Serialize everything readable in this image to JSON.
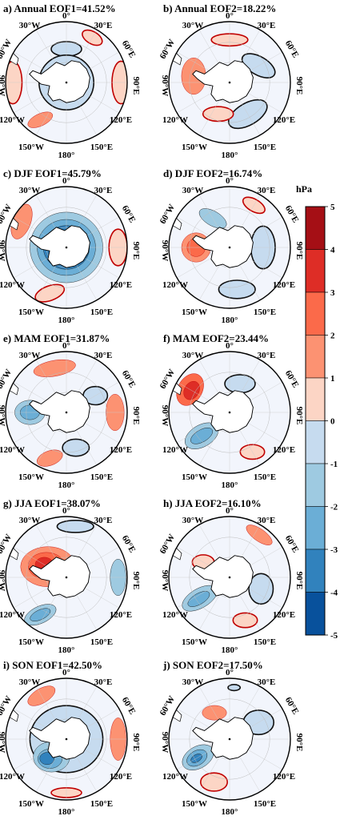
{
  "chart_data": {
    "type": "heatmap",
    "unit": "hPa",
    "colorbar": {
      "levels": [
        "5",
        "4",
        "3",
        "2",
        "1",
        "0",
        "-1",
        "-2",
        "-3",
        "-4",
        "-5"
      ],
      "colors": [
        "#a50f15",
        "#de2d26",
        "#fb6a4a",
        "#fc9272",
        "#fcd5c5",
        "#f2f5fc",
        "#c6dbef",
        "#9ecae1",
        "#6baed6",
        "#3182bd",
        "#08519c"
      ]
    },
    "longitude_labels": {
      "top": "0°",
      "w30": "30°W",
      "e30": "30°E",
      "w60": "60°W",
      "e60": "60°E",
      "w90": "90°W",
      "e90": "90°E",
      "w120": "120°W",
      "e120": "120°E",
      "w150": "150°W",
      "bottom": "180°",
      "e150": "150°E"
    },
    "panels": [
      {
        "title": "a) Annual EOF1=41.52%",
        "blobs": [
          {
            "a": 0,
            "r": 0.55,
            "rx": 0.25,
            "ry": 0.12,
            "v": -1,
            "rot": 0
          },
          {
            "a": 0,
            "r": 0.0,
            "rx": 0.45,
            "ry": 0.45,
            "v": -1,
            "rot": 0
          },
          {
            "a": 90,
            "r": 0.9,
            "rx": 0.15,
            "ry": 0.35,
            "v": 1,
            "rot": 0
          },
          {
            "a": 270,
            "r": 0.88,
            "rx": 0.15,
            "ry": 0.35,
            "v": 1,
            "rot": 0
          },
          {
            "a": 215,
            "r": 0.75,
            "rx": 0.22,
            "ry": 0.1,
            "v": 2,
            "rot": -25
          },
          {
            "a": 30,
            "r": 0.85,
            "rx": 0.18,
            "ry": 0.1,
            "v": 1,
            "rot": 30
          }
        ]
      },
      {
        "title": "b) Annual EOF2=18.22%",
        "blobs": [
          {
            "a": 280,
            "r": 0.6,
            "rx": 0.2,
            "ry": 0.3,
            "v": 2,
            "rot": 0
          },
          {
            "a": 60,
            "r": 0.55,
            "rx": 0.3,
            "ry": 0.15,
            "v": -1,
            "rot": 30
          },
          {
            "a": 150,
            "r": 0.6,
            "rx": 0.35,
            "ry": 0.18,
            "v": -1,
            "rot": -30
          },
          {
            "a": 200,
            "r": 0.55,
            "rx": 0.25,
            "ry": 0.12,
            "v": 1,
            "rot": 0
          },
          {
            "a": 0,
            "r": 0.7,
            "rx": 0.3,
            "ry": 0.1,
            "v": 1,
            "rot": 0
          }
        ]
      },
      {
        "title": "c) DJF EOF1=45.79%",
        "blobs": [
          {
            "a": 0,
            "r": 0.0,
            "rx": 0.6,
            "ry": 0.58,
            "v": -2,
            "rot": 0
          },
          {
            "a": 0,
            "r": 0.0,
            "rx": 0.48,
            "ry": 0.46,
            "v": -3,
            "rot": 0
          },
          {
            "a": 0,
            "r": 0.0,
            "rx": 0.38,
            "ry": 0.36,
            "v": -4,
            "rot": 0
          },
          {
            "a": 300,
            "r": 0.85,
            "rx": 0.15,
            "ry": 0.3,
            "v": 2,
            "rot": 20
          },
          {
            "a": 90,
            "r": 0.85,
            "rx": 0.15,
            "ry": 0.3,
            "v": 1,
            "rot": 0
          },
          {
            "a": 200,
            "r": 0.8,
            "rx": 0.25,
            "ry": 0.12,
            "v": 1,
            "rot": -20
          }
        ]
      },
      {
        "title": "d) DJF EOF2=16.74%",
        "blobs": [
          {
            "a": 270,
            "r": 0.55,
            "rx": 0.24,
            "ry": 0.24,
            "v": 2,
            "rot": 0
          },
          {
            "a": 270,
            "r": 0.55,
            "rx": 0.15,
            "ry": 0.15,
            "v": 3,
            "rot": 0
          },
          {
            "a": 330,
            "r": 0.55,
            "rx": 0.25,
            "ry": 0.12,
            "v": -2,
            "rot": 30
          },
          {
            "a": 90,
            "r": 0.55,
            "rx": 0.2,
            "ry": 0.35,
            "v": -1,
            "rot": 0
          },
          {
            "a": 170,
            "r": 0.7,
            "rx": 0.3,
            "ry": 0.15,
            "v": -1,
            "rot": 0
          },
          {
            "a": 30,
            "r": 0.8,
            "rx": 0.2,
            "ry": 0.1,
            "v": 1,
            "rot": 30
          }
        ]
      },
      {
        "title": "e) MAM EOF1=31.87%",
        "blobs": [
          {
            "a": 345,
            "r": 0.75,
            "rx": 0.35,
            "ry": 0.13,
            "v": 2,
            "rot": -10
          },
          {
            "a": 270,
            "r": 0.6,
            "rx": 0.25,
            "ry": 0.2,
            "v": -2,
            "rot": 0
          },
          {
            "a": 270,
            "r": 0.6,
            "rx": 0.16,
            "ry": 0.12,
            "v": -3,
            "rot": 0
          },
          {
            "a": 90,
            "r": 0.8,
            "rx": 0.15,
            "ry": 0.3,
            "v": 2,
            "rot": 0
          },
          {
            "a": 200,
            "r": 0.8,
            "rx": 0.22,
            "ry": 0.12,
            "v": 2,
            "rot": -20
          },
          {
            "a": 60,
            "r": 0.55,
            "rx": 0.2,
            "ry": 0.15,
            "v": -1,
            "rot": 0
          },
          {
            "a": 165,
            "r": 0.6,
            "rx": 0.22,
            "ry": 0.14,
            "v": -1,
            "rot": 0
          }
        ]
      },
      {
        "title": "f) MAM EOF2=23.44%",
        "blobs": [
          {
            "a": 300,
            "r": 0.75,
            "rx": 0.2,
            "ry": 0.28,
            "v": 3,
            "rot": 30
          },
          {
            "a": 300,
            "r": 0.72,
            "rx": 0.12,
            "ry": 0.16,
            "v": 4,
            "rot": 30
          },
          {
            "a": 230,
            "r": 0.6,
            "rx": 0.3,
            "ry": 0.18,
            "v": -2,
            "rot": -30
          },
          {
            "a": 230,
            "r": 0.6,
            "rx": 0.2,
            "ry": 0.1,
            "v": -3,
            "rot": -30
          },
          {
            "a": 20,
            "r": 0.5,
            "rx": 0.25,
            "ry": 0.15,
            "v": -1,
            "rot": 0
          },
          {
            "a": 150,
            "r": 0.75,
            "rx": 0.2,
            "ry": 0.12,
            "v": 1,
            "rot": 0
          }
        ]
      },
      {
        "title": "g) JJA EOF1=38.07%",
        "blobs": [
          {
            "a": 300,
            "r": 0.35,
            "rx": 0.45,
            "ry": 0.33,
            "v": 2,
            "rot": 0
          },
          {
            "a": 300,
            "r": 0.38,
            "rx": 0.3,
            "ry": 0.22,
            "v": 3,
            "rot": 0
          },
          {
            "a": 300,
            "r": 0.42,
            "rx": 0.15,
            "ry": 0.12,
            "v": 4,
            "rot": 0
          },
          {
            "a": 215,
            "r": 0.75,
            "rx": 0.28,
            "ry": 0.14,
            "v": -2,
            "rot": -25
          },
          {
            "a": 215,
            "r": 0.75,
            "rx": 0.18,
            "ry": 0.08,
            "v": -3,
            "rot": -25
          },
          {
            "a": 90,
            "r": 0.85,
            "rx": 0.13,
            "ry": 0.3,
            "v": -2,
            "rot": 0
          },
          {
            "a": 10,
            "r": 0.85,
            "rx": 0.3,
            "ry": 0.1,
            "v": -1,
            "rot": 0
          }
        ]
      },
      {
        "title": "h) JJA EOF2=16.10%",
        "blobs": [
          {
            "a": 235,
            "r": 0.6,
            "rx": 0.32,
            "ry": 0.16,
            "v": -2,
            "rot": -30
          },
          {
            "a": 235,
            "r": 0.62,
            "rx": 0.2,
            "ry": 0.09,
            "v": -3,
            "rot": -30
          },
          {
            "a": 35,
            "r": 0.85,
            "rx": 0.25,
            "ry": 0.1,
            "v": 2,
            "rot": 35
          },
          {
            "a": 110,
            "r": 0.55,
            "rx": 0.2,
            "ry": 0.25,
            "v": -1,
            "rot": 0
          },
          {
            "a": 300,
            "r": 0.5,
            "rx": 0.18,
            "ry": 0.12,
            "v": 1,
            "rot": 0
          },
          {
            "a": 160,
            "r": 0.75,
            "rx": 0.2,
            "ry": 0.12,
            "v": 1,
            "rot": 0
          }
        ]
      },
      {
        "title": "i) SON EOF1=42.50%",
        "blobs": [
          {
            "a": 0,
            "r": 0.0,
            "rx": 0.6,
            "ry": 0.55,
            "v": -1,
            "rot": 0
          },
          {
            "a": 220,
            "r": 0.38,
            "rx": 0.3,
            "ry": 0.25,
            "v": -2,
            "rot": 0
          },
          {
            "a": 220,
            "r": 0.42,
            "rx": 0.2,
            "ry": 0.16,
            "v": -3,
            "rot": 0
          },
          {
            "a": 225,
            "r": 0.45,
            "rx": 0.12,
            "ry": 0.1,
            "v": -4,
            "rot": 0
          },
          {
            "a": 90,
            "r": 0.85,
            "rx": 0.13,
            "ry": 0.35,
            "v": 2,
            "rot": 0
          },
          {
            "a": 330,
            "r": 0.82,
            "rx": 0.25,
            "ry": 0.12,
            "v": 2,
            "rot": -30
          },
          {
            "a": 180,
            "r": 0.88,
            "rx": 0.25,
            "ry": 0.08,
            "v": 1,
            "rot": 0
          }
        ]
      },
      {
        "title": "j) SON EOF2=17.50%",
        "blobs": [
          {
            "a": 240,
            "r": 0.6,
            "rx": 0.28,
            "ry": 0.18,
            "v": -2,
            "rot": -30
          },
          {
            "a": 240,
            "r": 0.62,
            "rx": 0.18,
            "ry": 0.12,
            "v": -3,
            "rot": -30
          },
          {
            "a": 240,
            "r": 0.63,
            "rx": 0.1,
            "ry": 0.06,
            "v": -4,
            "rot": -30
          },
          {
            "a": 330,
            "r": 0.5,
            "rx": 0.2,
            "ry": 0.12,
            "v": 2,
            "rot": 0
          },
          {
            "a": 200,
            "r": 0.75,
            "rx": 0.22,
            "ry": 0.15,
            "v": 1,
            "rot": 0
          },
          {
            "a": 60,
            "r": 0.55,
            "rx": 0.25,
            "ry": 0.2,
            "v": -1,
            "rot": 0
          },
          {
            "a": 5,
            "r": 0.85,
            "rx": 0.1,
            "ry": 0.05,
            "v": -1,
            "rot": 0
          }
        ]
      }
    ]
  }
}
